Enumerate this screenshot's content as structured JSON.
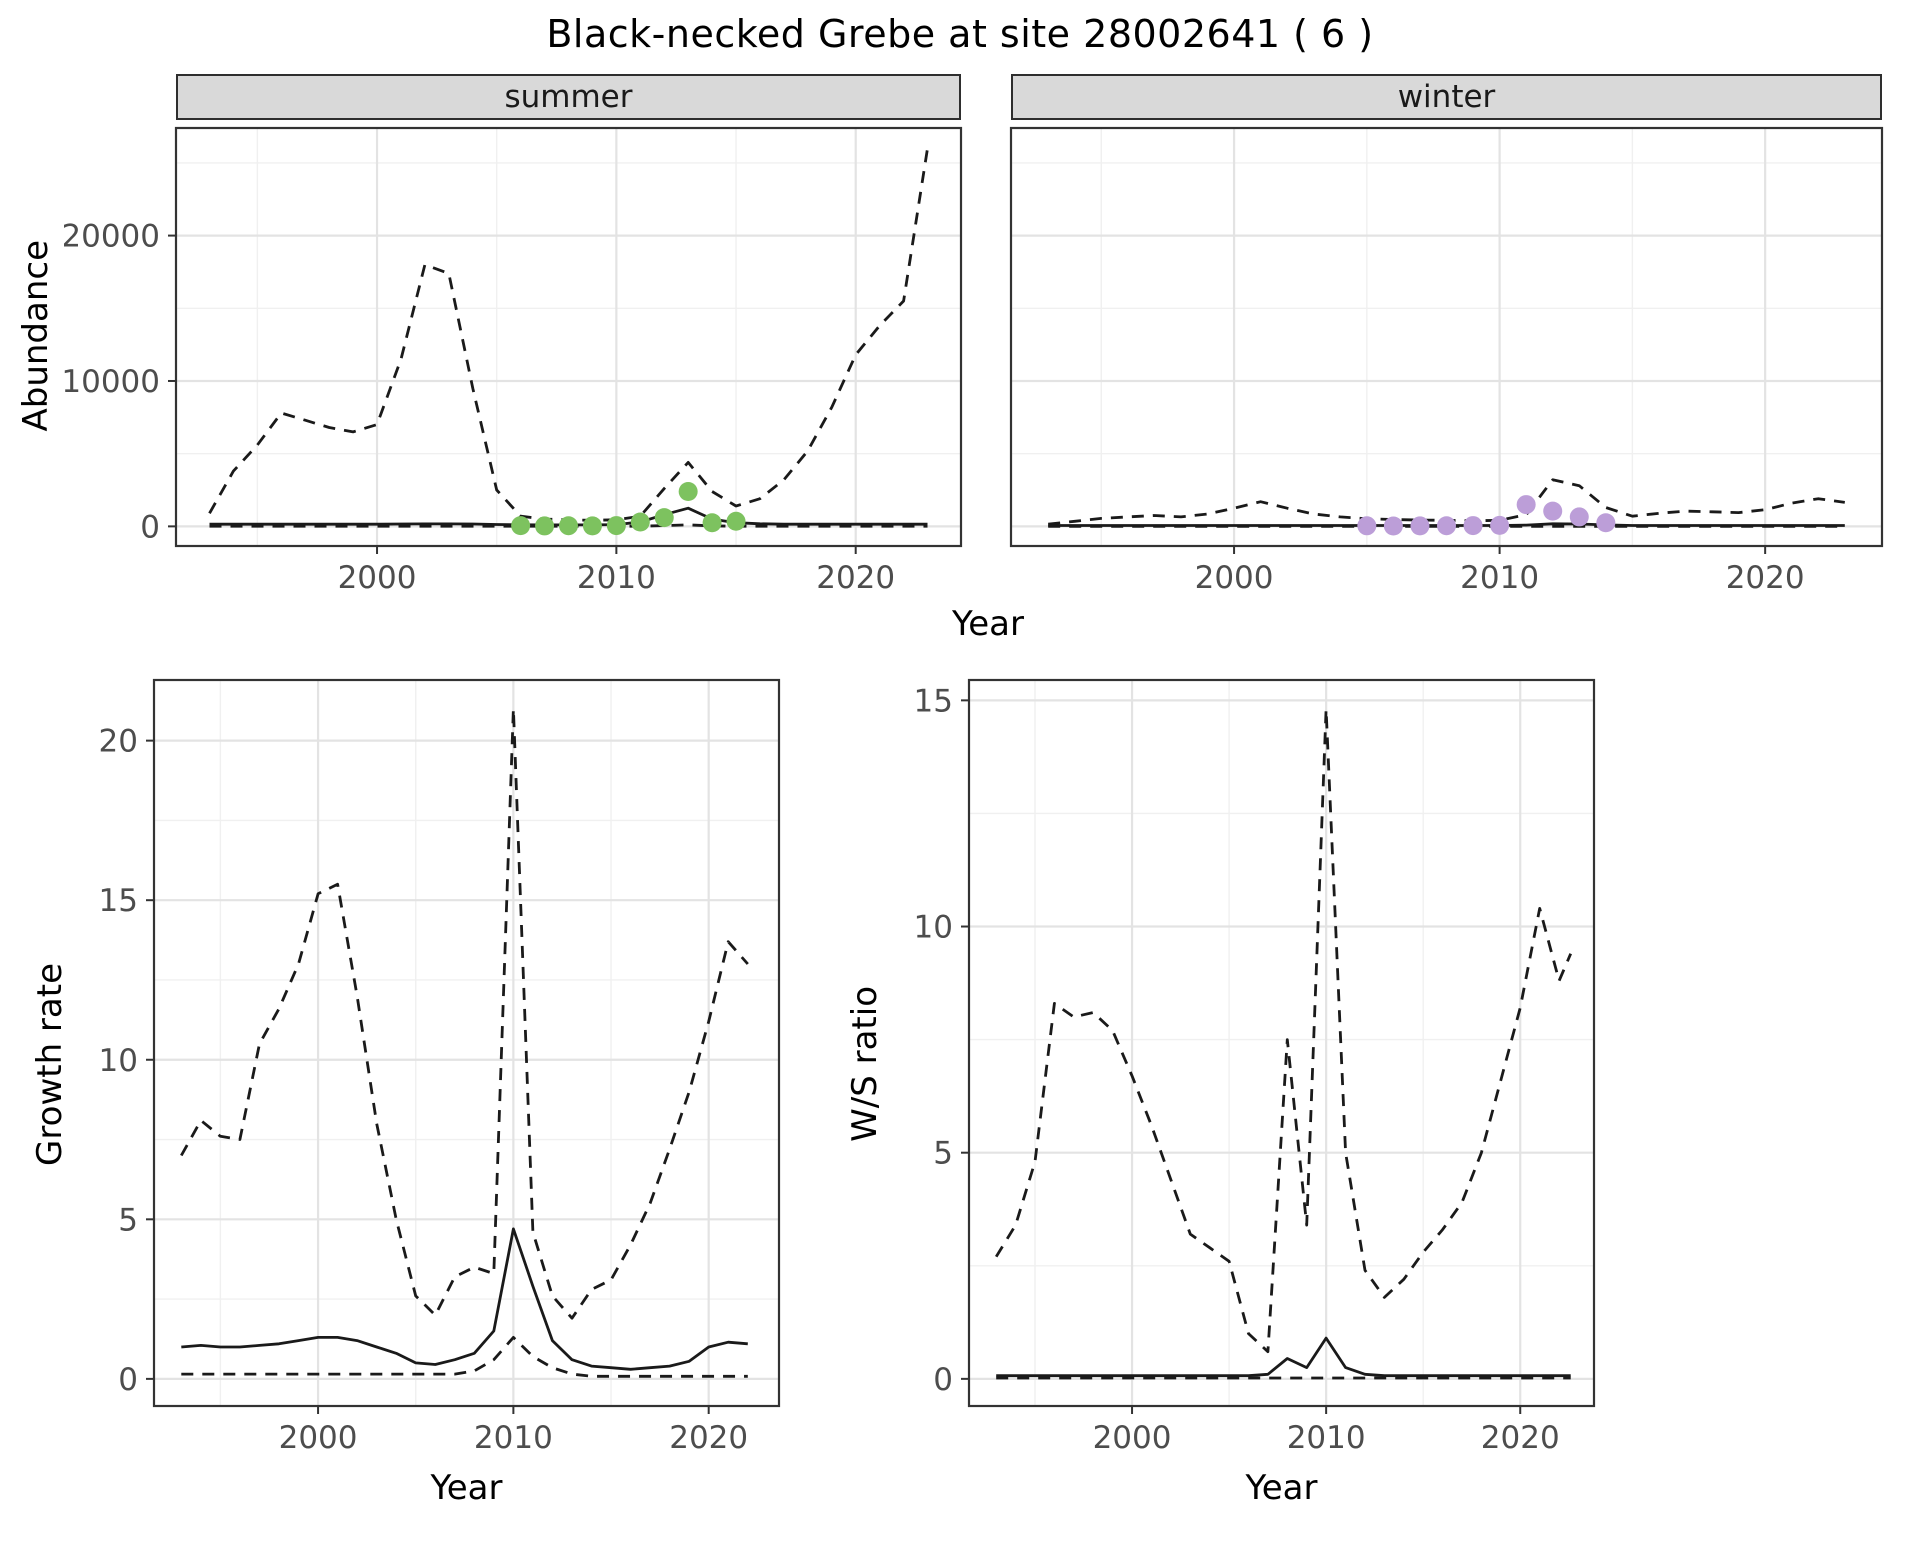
{
  "title": "Black-necked Grebe at site 28002641 ( 6 )",
  "axes": {
    "abundance_label": "Abundance",
    "year_label": "Year",
    "growth_label": "Growth rate",
    "ws_label": "W/S ratio"
  },
  "colors": {
    "summer_points": "#7dc25f",
    "winter_points": "#bc9ed8",
    "line": "#1a1a1a",
    "strip_bg": "#d9d9d9",
    "grid_major": "#e3e3e3",
    "grid_minor": "#f0f0f0",
    "panel_border": "#333333",
    "tick_text": "#4d4d4d"
  },
  "chart_data": [
    {
      "id": "abundance-summer",
      "type": "line",
      "facet": "summer",
      "xlabel": "Year",
      "ylabel": "Abundance",
      "xlim": [
        1991.6,
        2024.4
      ],
      "ylim": [
        -1350,
        27400
      ],
      "xticks": [
        2000,
        2010,
        2020
      ],
      "yticks": [
        0,
        10000,
        20000
      ],
      "show_y_tick_labels": true,
      "series": [
        {
          "name": "upper-95ci",
          "style": "dashed",
          "x": [
            1993,
            1994,
            1995,
            1996,
            1997,
            1998,
            1999,
            2000,
            2001,
            2002,
            2003,
            2004,
            2005,
            2006,
            2007,
            2008,
            2009,
            2010,
            2011,
            2012,
            2013,
            2014,
            2015,
            2016,
            2017,
            2018,
            2019,
            2020,
            2021,
            2022,
            2023
          ],
          "y": [
            900,
            3800,
            5600,
            7800,
            7300,
            6800,
            6500,
            7000,
            11500,
            18000,
            17400,
            9500,
            2500,
            700,
            500,
            450,
            420,
            450,
            700,
            2600,
            4400,
            2400,
            1400,
            1900,
            3200,
            5200,
            8200,
            11800,
            13800,
            15500,
            26000
          ]
        },
        {
          "name": "estimate",
          "style": "solid",
          "x": [
            1993,
            1994,
            1995,
            1996,
            1997,
            1998,
            1999,
            2000,
            2001,
            2002,
            2003,
            2004,
            2005,
            2006,
            2007,
            2008,
            2009,
            2010,
            2011,
            2012,
            2013,
            2014,
            2015,
            2016,
            2017,
            2018,
            2019,
            2020,
            2021,
            2022,
            2023
          ],
          "y": [
            150,
            150,
            150,
            150,
            150,
            150,
            150,
            150,
            160,
            170,
            170,
            160,
            130,
            110,
            100,
            100,
            100,
            120,
            300,
            800,
            1250,
            500,
            250,
            180,
            150,
            150,
            150,
            150,
            150,
            150,
            150
          ]
        },
        {
          "name": "lower-95ci",
          "style": "dashed",
          "x": [
            1993,
            1994,
            1995,
            1996,
            1997,
            1998,
            1999,
            2000,
            2001,
            2002,
            2003,
            2004,
            2005,
            2006,
            2007,
            2008,
            2009,
            2010,
            2011,
            2012,
            2013,
            2014,
            2015,
            2016,
            2017,
            2018,
            2019,
            2020,
            2021,
            2022,
            2023
          ],
          "y": [
            10,
            10,
            10,
            10,
            10,
            10,
            10,
            10,
            10,
            10,
            10,
            10,
            10,
            10,
            10,
            10,
            10,
            10,
            15,
            50,
            100,
            30,
            15,
            10,
            10,
            10,
            10,
            10,
            10,
            10,
            10
          ]
        }
      ],
      "points": [
        {
          "name": "observed-counts",
          "color_key": "summer_points",
          "x": [
            2006,
            2007,
            2008,
            2009,
            2010,
            2011,
            2012,
            2013,
            2014,
            2015
          ],
          "y": [
            50,
            30,
            45,
            35,
            55,
            300,
            600,
            2400,
            250,
            350
          ]
        }
      ]
    },
    {
      "id": "abundance-winter",
      "type": "line",
      "facet": "winter",
      "xlabel": "Year",
      "ylabel": "Abundance",
      "xlim": [
        1991.6,
        2024.4
      ],
      "ylim": [
        -1350,
        27400
      ],
      "xticks": [
        2000,
        2010,
        2020
      ],
      "yticks": [
        0,
        10000,
        20000
      ],
      "show_y_tick_labels": false,
      "series": [
        {
          "name": "upper-95ci",
          "style": "dashed",
          "x": [
            1993,
            1994,
            1995,
            1996,
            1997,
            1998,
            1999,
            2000,
            2001,
            2002,
            2003,
            2004,
            2005,
            2006,
            2007,
            2008,
            2009,
            2010,
            2011,
            2012,
            2013,
            2014,
            2015,
            2016,
            2017,
            2018,
            2019,
            2020,
            2021,
            2022,
            2023
          ],
          "y": [
            150,
            350,
            550,
            650,
            750,
            650,
            850,
            1250,
            1700,
            1250,
            850,
            650,
            520,
            470,
            430,
            420,
            380,
            420,
            800,
            3200,
            2800,
            1300,
            700,
            900,
            1050,
            1000,
            950,
            1150,
            1600,
            1900,
            1650
          ]
        },
        {
          "name": "estimate",
          "style": "solid",
          "x": [
            1993,
            1994,
            1995,
            1996,
            1997,
            1998,
            1999,
            2000,
            2001,
            2002,
            2003,
            2004,
            2005,
            2006,
            2007,
            2008,
            2009,
            2010,
            2011,
            2012,
            2013,
            2014,
            2015,
            2016,
            2017,
            2018,
            2019,
            2020,
            2021,
            2022,
            2023
          ],
          "y": [
            60,
            60,
            60,
            60,
            60,
            60,
            60,
            60,
            60,
            60,
            60,
            60,
            60,
            60,
            60,
            60,
            60,
            60,
            90,
            180,
            160,
            100,
            60,
            60,
            60,
            60,
            60,
            60,
            60,
            60,
            60
          ]
        },
        {
          "name": "lower-95ci",
          "style": "dashed",
          "x": [
            1993,
            1994,
            1995,
            1996,
            1997,
            1998,
            1999,
            2000,
            2001,
            2002,
            2003,
            2004,
            2005,
            2006,
            2007,
            2008,
            2009,
            2010,
            2011,
            2012,
            2013,
            2014,
            2015,
            2016,
            2017,
            2018,
            2019,
            2020,
            2021,
            2022,
            2023
          ],
          "y": [
            5,
            5,
            5,
            5,
            5,
            5,
            5,
            5,
            5,
            5,
            5,
            5,
            5,
            5,
            5,
            5,
            5,
            5,
            5,
            5,
            5,
            5,
            5,
            5,
            5,
            5,
            5,
            5,
            5,
            5,
            5
          ]
        }
      ],
      "points": [
        {
          "name": "observed-counts",
          "color_key": "winter_points",
          "x": [
            2005,
            2006,
            2007,
            2008,
            2009,
            2010,
            2011,
            2012,
            2013,
            2014
          ],
          "y": [
            40,
            25,
            35,
            45,
            55,
            70,
            1500,
            1050,
            650,
            250
          ]
        }
      ]
    },
    {
      "id": "growth-rate",
      "type": "line",
      "facet": "",
      "xlabel": "Year",
      "ylabel": "Growth rate",
      "xlim": [
        1991.6,
        2023.6
      ],
      "ylim": [
        -0.85,
        21.9
      ],
      "xticks": [
        2000,
        2010,
        2020
      ],
      "yticks": [
        0,
        5,
        10,
        15,
        20
      ],
      "show_y_tick_labels": true,
      "series": [
        {
          "name": "upper-95ci",
          "style": "dashed",
          "x": [
            1993,
            1994,
            1995,
            1996,
            1997,
            1998,
            1999,
            2000,
            2001,
            2002,
            2003,
            2004,
            2005,
            2006,
            2007,
            2008,
            2009,
            2010,
            2011,
            2012,
            2013,
            2014,
            2015,
            2016,
            2017,
            2018,
            2019,
            2020,
            2021,
            2022
          ],
          "y": [
            7.0,
            8.1,
            7.6,
            7.5,
            10.5,
            11.6,
            13.0,
            15.2,
            15.5,
            12.0,
            8.0,
            5.0,
            2.6,
            2.0,
            3.2,
            3.5,
            3.3,
            21.0,
            4.6,
            2.6,
            1.9,
            2.8,
            3.1,
            4.2,
            5.5,
            7.2,
            9.0,
            11.2,
            13.7,
            13.0
          ]
        },
        {
          "name": "estimate",
          "style": "solid",
          "x": [
            1993,
            1994,
            1995,
            1996,
            1997,
            1998,
            1999,
            2000,
            2001,
            2002,
            2003,
            2004,
            2005,
            2006,
            2007,
            2008,
            2009,
            2010,
            2011,
            2012,
            2013,
            2014,
            2015,
            2016,
            2017,
            2018,
            2019,
            2020,
            2021,
            2022
          ],
          "y": [
            1.0,
            1.05,
            1.0,
            1.0,
            1.05,
            1.1,
            1.2,
            1.3,
            1.3,
            1.2,
            1.0,
            0.8,
            0.5,
            0.45,
            0.6,
            0.8,
            1.5,
            4.7,
            2.9,
            1.2,
            0.6,
            0.4,
            0.35,
            0.3,
            0.35,
            0.4,
            0.55,
            1.0,
            1.15,
            1.1
          ]
        },
        {
          "name": "lower-95ci",
          "style": "dashed",
          "x": [
            1993,
            1994,
            1995,
            1996,
            1997,
            1998,
            1999,
            2000,
            2001,
            2002,
            2003,
            2004,
            2005,
            2006,
            2007,
            2008,
            2009,
            2010,
            2011,
            2012,
            2013,
            2014,
            2015,
            2016,
            2017,
            2018,
            2019,
            2020,
            2021,
            2022
          ],
          "y": [
            0.15,
            0.15,
            0.15,
            0.15,
            0.15,
            0.15,
            0.15,
            0.15,
            0.15,
            0.15,
            0.15,
            0.15,
            0.15,
            0.15,
            0.15,
            0.25,
            0.6,
            1.3,
            0.7,
            0.35,
            0.15,
            0.08,
            0.08,
            0.08,
            0.08,
            0.08,
            0.08,
            0.08,
            0.08,
            0.08
          ]
        }
      ],
      "points": []
    },
    {
      "id": "ws-ratio",
      "type": "line",
      "facet": "",
      "xlabel": "Year",
      "ylabel": "W/S ratio",
      "xlim": [
        1991.6,
        2023.8
      ],
      "ylim": [
        -0.6,
        15.45
      ],
      "xticks": [
        2000,
        2010,
        2020
      ],
      "yticks": [
        0,
        5,
        10,
        15
      ],
      "show_y_tick_labels": true,
      "series": [
        {
          "name": "upper-95ci",
          "style": "dashed",
          "x": [
            1993,
            1994,
            1995,
            1996,
            1997,
            1998,
            1999,
            2000,
            2001,
            2002,
            2003,
            2004,
            2005,
            2006,
            2007,
            2008,
            2009,
            2010,
            2011,
            2012,
            2013,
            2014,
            2015,
            2016,
            2017,
            2018,
            2019,
            2020,
            2021,
            2022,
            2022.6
          ],
          "y": [
            2.7,
            3.4,
            4.8,
            8.3,
            8.0,
            8.1,
            7.7,
            6.7,
            5.6,
            4.4,
            3.2,
            2.9,
            2.6,
            1.0,
            0.6,
            7.5,
            3.4,
            14.8,
            5.0,
            2.4,
            1.8,
            2.2,
            2.8,
            3.3,
            3.9,
            5.0,
            6.6,
            8.2,
            10.4,
            8.8,
            9.4
          ]
        },
        {
          "name": "estimate",
          "style": "solid",
          "x": [
            1993,
            1994,
            1995,
            1996,
            1997,
            1998,
            1999,
            2000,
            2001,
            2002,
            2003,
            2004,
            2005,
            2006,
            2007,
            2008,
            2009,
            2010,
            2011,
            2012,
            2013,
            2014,
            2015,
            2016,
            2017,
            2018,
            2019,
            2020,
            2021,
            2022,
            2022.6
          ],
          "y": [
            0.07,
            0.07,
            0.07,
            0.07,
            0.07,
            0.07,
            0.07,
            0.07,
            0.07,
            0.07,
            0.07,
            0.07,
            0.07,
            0.07,
            0.1,
            0.45,
            0.25,
            0.9,
            0.25,
            0.1,
            0.07,
            0.07,
            0.07,
            0.07,
            0.07,
            0.07,
            0.07,
            0.07,
            0.07,
            0.07,
            0.07
          ]
        },
        {
          "name": "lower-95ci",
          "style": "dashed",
          "x": [
            1993,
            1994,
            1995,
            1996,
            1997,
            1998,
            1999,
            2000,
            2001,
            2002,
            2003,
            2004,
            2005,
            2006,
            2007,
            2008,
            2009,
            2010,
            2011,
            2012,
            2013,
            2014,
            2015,
            2016,
            2017,
            2018,
            2019,
            2020,
            2021,
            2022,
            2022.6
          ],
          "y": [
            0.02,
            0.02,
            0.02,
            0.02,
            0.02,
            0.02,
            0.02,
            0.02,
            0.02,
            0.02,
            0.02,
            0.02,
            0.02,
            0.02,
            0.02,
            0.02,
            0.02,
            0.02,
            0.02,
            0.02,
            0.02,
            0.02,
            0.02,
            0.02,
            0.02,
            0.02,
            0.02,
            0.02,
            0.02,
            0.02,
            0.02
          ]
        }
      ],
      "points": []
    }
  ]
}
